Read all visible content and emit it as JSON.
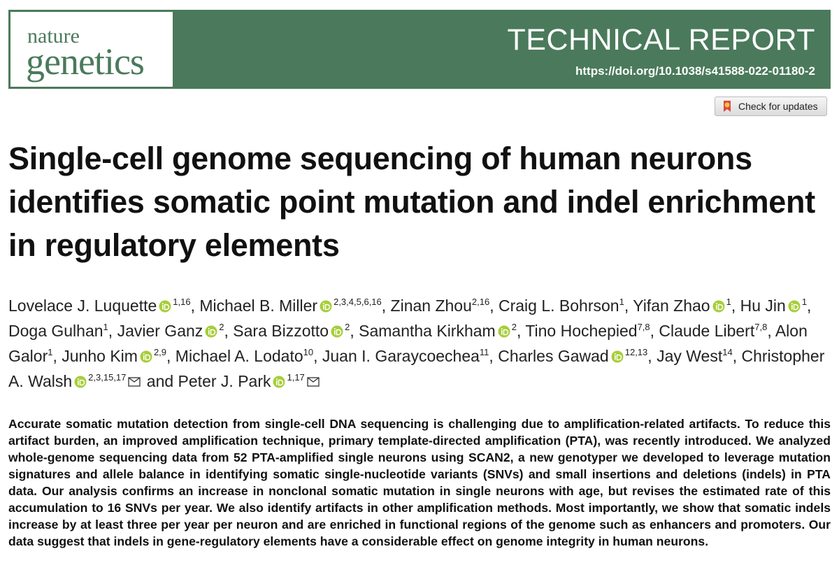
{
  "header": {
    "journal_top": "nature",
    "journal_bottom": "genetics",
    "article_type": "TECHNICAL REPORT",
    "doi": "https://doi.org/10.1038/s41588-022-01180-2",
    "check_updates": "Check for updates"
  },
  "title": "Single-cell genome sequencing of human neurons identifies somatic point mutation and indel enrichment in regulatory elements",
  "authors_separator": ",",
  "authors_conjunction": "and",
  "authors": [
    {
      "name": "Lovelace J. Luquette",
      "affiliations": "1,16",
      "orcid": true,
      "corresponding": false
    },
    {
      "name": "Michael B. Miller",
      "affiliations": "2,3,4,5,6,16",
      "orcid": true,
      "corresponding": false
    },
    {
      "name": "Zinan Zhou",
      "affiliations": "2,16",
      "orcid": false,
      "corresponding": false
    },
    {
      "name": "Craig L. Bohrson",
      "affiliations": "1",
      "orcid": false,
      "corresponding": false
    },
    {
      "name": "Yifan Zhao",
      "affiliations": "1",
      "orcid": true,
      "corresponding": false
    },
    {
      "name": "Hu Jin",
      "affiliations": "1",
      "orcid": true,
      "corresponding": false
    },
    {
      "name": "Doga Gulhan",
      "affiliations": "1",
      "orcid": false,
      "corresponding": false
    },
    {
      "name": "Javier Ganz",
      "affiliations": "2",
      "orcid": true,
      "corresponding": false
    },
    {
      "name": "Sara Bizzotto",
      "affiliations": "2",
      "orcid": true,
      "corresponding": false
    },
    {
      "name": "Samantha Kirkham",
      "affiliations": "2",
      "orcid": true,
      "corresponding": false
    },
    {
      "name": "Tino Hochepied",
      "affiliations": "7,8",
      "orcid": false,
      "corresponding": false
    },
    {
      "name": "Claude Libert",
      "affiliations": "7,8",
      "orcid": false,
      "corresponding": false
    },
    {
      "name": "Alon Galor",
      "affiliations": "1",
      "orcid": false,
      "corresponding": false
    },
    {
      "name": "Junho Kim",
      "affiliations": "2,9",
      "orcid": true,
      "corresponding": false
    },
    {
      "name": "Michael A. Lodato",
      "affiliations": "10",
      "orcid": false,
      "corresponding": false
    },
    {
      "name": "Juan I. Garaycoechea",
      "affiliations": "11",
      "orcid": false,
      "corresponding": false
    },
    {
      "name": "Charles Gawad",
      "affiliations": "12,13",
      "orcid": true,
      "corresponding": false
    },
    {
      "name": "Jay West",
      "affiliations": "14",
      "orcid": false,
      "corresponding": false
    },
    {
      "name": "Christopher A. Walsh",
      "affiliations": "2,3,15,17",
      "orcid": true,
      "corresponding": true
    },
    {
      "name": "Peter J. Park",
      "affiliations": "1,17",
      "orcid": true,
      "corresponding": true
    }
  ],
  "abstract": "Accurate somatic mutation detection from single-cell DNA sequencing is challenging due to amplification-related artifacts. To reduce this artifact burden, an improved amplification technique, primary template-directed amplification (PTA), was recently introduced. We analyzed whole-genome sequencing data from 52 PTA-amplified single neurons using SCAN2, a new genotyper we developed to leverage mutation signatures and allele balance in identifying somatic single-nucleotide variants (SNVs) and small insertions and deletions (indels) in PTA data. Our analysis confirms an increase in nonclonal somatic mutation in single neurons with age, but revises the estimated rate of this accumulation to 16 SNVs per year. We also identify artifacts in other amplification methods. Most importantly, we show that somatic indels increase by at least three per year per neuron and are enriched in functional regions of the genome such as enhancers and promoters. Our data suggest that indels in gene-regulatory elements have a considerable effect on genome integrity in human neurons."
}
